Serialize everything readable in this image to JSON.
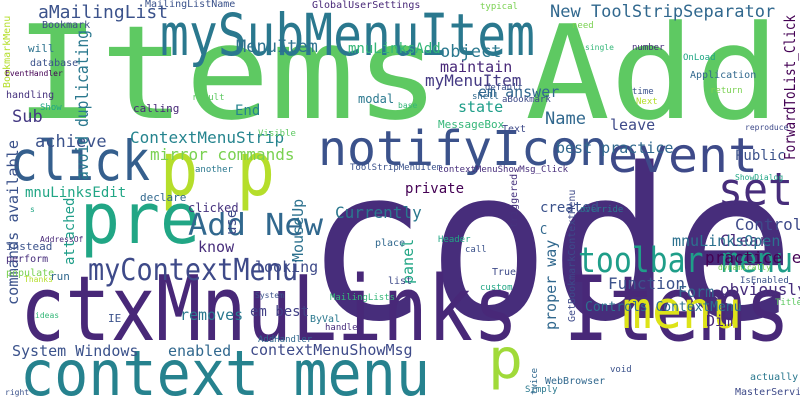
{
  "words": [
    "Items Add",
    "code",
    "ctxMnuLinks Items",
    "context menu",
    "mySubMenuItem",
    "notifyIcon",
    "event",
    "click",
    "p p",
    "pre",
    "set",
    "Add New",
    "myContextMenu",
    "toolbar menu",
    "menu",
    "p",
    "MenuItem",
    "aMailingList",
    "New ToolStripSeparator",
    "mnuLinksAdd",
    "object",
    "maintain",
    "myMenuItem",
    "em answer",
    "state",
    "leave",
    "best practice",
    "MessageBox",
    "modal",
    "ContextMenuStrip",
    "mirror commands",
    "mnuLinksEdit",
    "Public",
    "Control",
    "Clear",
    "mnuLinksOpen",
    "practice em",
    "obviously",
    "Form",
    "Function",
    "em best",
    "contextMenuShowMsg",
    "enabled",
    "System Windows",
    "removes",
    "looking",
    "know",
    "Currently",
    "Name",
    "Sub",
    "achieve",
    "End",
    "Controls ContextMenu",
    "Dim",
    "clicked",
    "declare",
    "ForwardToList_Click",
    "avoid duplicating",
    "commands available",
    "attached",
    "MouseUp",
    "panel",
    "proper way",
    "use",
    "triggered",
    "BookmarkMenu",
    "MailingListName",
    "GlobalUserSettings",
    "typical",
    "Bookmark",
    "will",
    "database",
    "EventHandler",
    "handling",
    "Show",
    "instead",
    "perform",
    "populate",
    "Thanks",
    "run",
    "AddressOf",
    "ideas",
    "IE",
    "MasterService",
    "WebBrowser",
    "Simply",
    "need",
    "single",
    "OnLoad",
    "return",
    "Application",
    "Next",
    "time",
    "number",
    "dynamically",
    "Title",
    "IsEnabled",
    "ShowDialog",
    "reproduce",
    "actually",
    "void",
    "custom",
    "C",
    "created",
    "place",
    "list",
    "Header",
    "ToolStripMenuItem",
    "contextMenuShowMsg_Click",
    "ByVal",
    "MailingLists",
    "True",
    "handle",
    "AddHandler",
    "System",
    "another",
    "Visible",
    "Text",
    "default",
    "result",
    "calling",
    "aBookmark",
    "shell",
    "base",
    "private",
    "s",
    "call",
    "override",
    "twice",
    "GetBookmarkContextMenu",
    "right"
  ]
}
